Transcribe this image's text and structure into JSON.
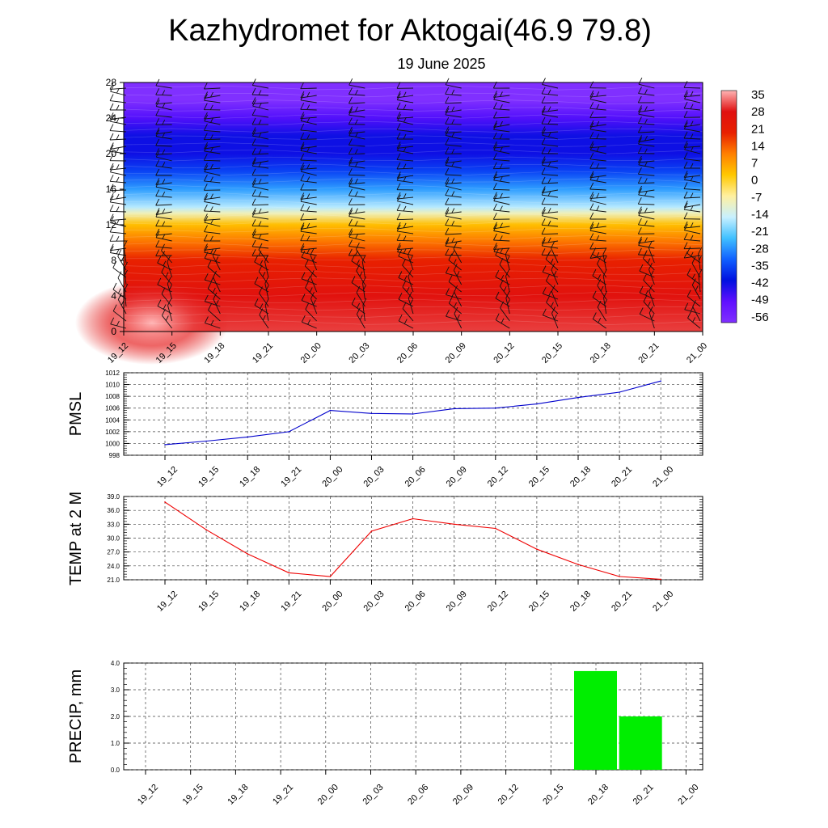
{
  "header": {
    "title": "Kazhydromet for Aktogai(46.9 79.8)",
    "subtitle": "19 June 2025"
  },
  "chart_data": [
    {
      "type": "heatmap",
      "x": [
        "19_12",
        "19_15",
        "19_18",
        "19_21",
        "20_00",
        "20_03",
        "20_06",
        "20_09",
        "20_12",
        "20_15",
        "20_18",
        "20_21",
        "21_00"
      ],
      "y_ticks": [
        "0",
        "4",
        "8",
        "12",
        "16",
        "20",
        "24",
        "28"
      ],
      "ylim": [
        0,
        28
      ],
      "colorbar": {
        "labels": [
          "35",
          "28",
          "21",
          "14",
          "7",
          "0",
          "-7",
          "-14",
          "-21",
          "-28",
          "-35",
          "-42",
          "-49",
          "-56"
        ],
        "stops": [
          {
            "value": 35,
            "color": "#ffb4b4"
          },
          {
            "value": 28,
            "color": "#e01010"
          },
          {
            "value": 14,
            "color": "#e82000"
          },
          {
            "value": 7,
            "color": "#ff8000"
          },
          {
            "value": 0,
            "color": "#ffc800"
          },
          {
            "value": -7,
            "color": "#fff0a0"
          },
          {
            "value": -14,
            "color": "#c8f0ff"
          },
          {
            "value": -21,
            "color": "#40c0ff"
          },
          {
            "value": -35,
            "color": "#1060ff"
          },
          {
            "value": -49,
            "color": "#0010e0"
          },
          {
            "value": -56,
            "color": "#6010ff"
          },
          {
            "value": -60,
            "color": "#8030ff"
          }
        ]
      },
      "profile": [
        {
          "level": 0,
          "value": 30
        },
        {
          "level": 4,
          "value": 26
        },
        {
          "level": 8,
          "value": 14
        },
        {
          "level": 10,
          "value": 8
        },
        {
          "level": 12,
          "value": 1
        },
        {
          "level": 13.3,
          "value": -9
        },
        {
          "level": 14,
          "value": -15
        },
        {
          "level": 16,
          "value": -26
        },
        {
          "level": 18,
          "value": -40
        },
        {
          "level": 20,
          "value": -50
        },
        {
          "level": 22,
          "value": -50
        },
        {
          "level": 24,
          "value": -55
        },
        {
          "level": 26,
          "value": -60
        },
        {
          "level": 28,
          "value": -60
        }
      ],
      "warm_core": {
        "time": "19_12",
        "level": 1,
        "value": 35
      }
    },
    {
      "type": "line",
      "ylabel": "PMSL",
      "x": [
        "19_12",
        "19_15",
        "19_18",
        "19_21",
        "20_00",
        "20_03",
        "20_06",
        "20_09",
        "20_12",
        "20_15",
        "20_18",
        "20_21",
        "21_00"
      ],
      "y_ticks": [
        "998",
        "1000",
        "1002",
        "1004",
        "1006",
        "1008",
        "1010",
        "1012"
      ],
      "ylim": [
        998,
        1012
      ],
      "color": "#0000cc",
      "values": [
        999.8,
        1000.4,
        1001.1,
        1002.0,
        1005.6,
        1005.1,
        1005.0,
        1005.9,
        1006.0,
        1006.7,
        1007.8,
        1008.7,
        1010.6
      ],
      "grid": true
    },
    {
      "type": "line",
      "ylabel": "TEMP at 2 M",
      "x": [
        "19_12",
        "19_15",
        "19_18",
        "19_21",
        "20_00",
        "20_03",
        "20_06",
        "20_09",
        "20_12",
        "20_15",
        "20_18",
        "20_21",
        "21_00"
      ],
      "y_ticks": [
        "21.0",
        "24.0",
        "27.0",
        "30.0",
        "33.0",
        "36.0",
        "39.0"
      ],
      "ylim": [
        21,
        39
      ],
      "color": "#ee0000",
      "values": [
        37.8,
        31.8,
        26.6,
        22.5,
        21.7,
        31.5,
        34.2,
        33.0,
        32.1,
        27.6,
        24.3,
        21.7,
        21.1
      ],
      "grid": true
    },
    {
      "type": "bar",
      "ylabel": "PRECIP, mm",
      "x": [
        "19_12",
        "19_15",
        "19_18",
        "19_21",
        "20_00",
        "20_03",
        "20_06",
        "20_09",
        "20_12",
        "20_15",
        "20_18",
        "20_21",
        "21_00"
      ],
      "y_ticks": [
        "0.0",
        "1.0",
        "2.0",
        "3.0",
        "4.0"
      ],
      "ylim": [
        0,
        4
      ],
      "color": "#00ee00",
      "values": [
        0,
        0,
        0,
        0,
        0,
        0,
        0,
        0,
        0,
        0,
        3.7,
        2.0,
        0
      ],
      "grid": true
    }
  ]
}
